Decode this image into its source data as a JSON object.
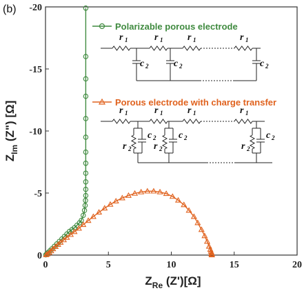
{
  "panel_label": "(b)",
  "chart_data": {
    "type": "scatter",
    "xlabel": {
      "main": "Z",
      "sub": "Re",
      "rest": " (Z')[Ω]"
    },
    "ylabel": {
      "main": "Z",
      "sub": "Im",
      "rest": " (Z\") [Ω]"
    },
    "xlim": [
      0,
      20
    ],
    "ylim": [
      0,
      -20
    ],
    "xticks": [
      0,
      5,
      10,
      15,
      20
    ],
    "yticks": [
      0,
      -5,
      -10,
      -15,
      -20
    ],
    "grid": false,
    "series": [
      {
        "name": "Polarizable porous electrode",
        "color": "#3f8a3f",
        "marker": "circle",
        "x": [
          0.02,
          0.1,
          0.2,
          0.35,
          0.5,
          0.7,
          0.9,
          1.1,
          1.3,
          1.5,
          1.7,
          1.9,
          2.1,
          2.3,
          2.5,
          2.7,
          2.85,
          3.0,
          3.1,
          3.15,
          3.18,
          3.2,
          3.2,
          3.2,
          3.2,
          3.2,
          3.2,
          3.2,
          3.2,
          3.2,
          3.2,
          3.2,
          3.2
        ],
        "y": [
          -0.02,
          -0.1,
          -0.2,
          -0.35,
          -0.5,
          -0.7,
          -0.9,
          -1.1,
          -1.3,
          -1.5,
          -1.7,
          -1.9,
          -2.05,
          -2.2,
          -2.4,
          -2.6,
          -2.8,
          -3.2,
          -3.6,
          -4.0,
          -4.4,
          -4.8,
          -5.3,
          -5.9,
          -6.6,
          -7.4,
          -8.3,
          -9.5,
          -11.0,
          -12.8,
          -14.2,
          -16.0,
          -19.9
        ]
      },
      {
        "name": "Porous electrode with charge transfer",
        "color": "#e0621e",
        "marker": "triangle",
        "x": [
          0.05,
          0.15,
          0.3,
          0.45,
          0.6,
          0.8,
          1.0,
          1.2,
          1.45,
          1.7,
          2.0,
          2.3,
          2.65,
          3.0,
          3.4,
          3.8,
          4.25,
          4.7,
          5.15,
          5.6,
          6.1,
          6.6,
          7.1,
          7.6,
          8.1,
          8.6,
          9.1,
          9.6,
          10.1,
          10.55,
          11.0,
          11.4,
          11.8,
          12.1,
          12.4,
          12.65,
          12.85,
          13.0,
          13.1,
          13.15,
          13.2,
          13.2,
          13.22,
          13.22
        ],
        "y": [
          -0.02,
          -0.08,
          -0.2,
          -0.33,
          -0.5,
          -0.68,
          -0.85,
          -1.02,
          -1.22,
          -1.42,
          -1.65,
          -1.88,
          -2.15,
          -2.45,
          -2.78,
          -3.1,
          -3.45,
          -3.78,
          -4.08,
          -4.35,
          -4.6,
          -4.8,
          -4.97,
          -5.08,
          -5.15,
          -5.15,
          -5.08,
          -4.95,
          -4.72,
          -4.42,
          -4.05,
          -3.6,
          -3.1,
          -2.6,
          -2.05,
          -1.55,
          -1.1,
          -0.7,
          -0.45,
          -0.3,
          -0.18,
          -0.1,
          -0.05,
          -0.01
        ]
      }
    ]
  },
  "circuit_labels": {
    "r": "r",
    "c": "c",
    "sub1": "1",
    "sub2": "2"
  }
}
